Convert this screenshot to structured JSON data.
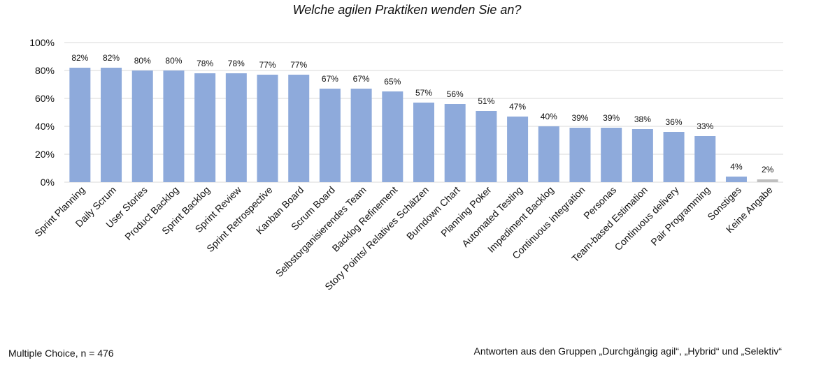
{
  "chart_data": {
    "type": "bar",
    "title": "Welche agilen Praktiken wenden Sie an?",
    "categories": [
      "Sprint Planning",
      "Daily Scrum",
      "User Stories",
      "Product Backlog",
      "Sprint Backlog",
      "Sprint Review",
      "Sprint Retrospective",
      "Kanban Board",
      "Scrum Board",
      "Selbstorganisierendes Team",
      "Backlog Refinement",
      "Story Points/ Relatives Schätzen",
      "Burndown Chart",
      "Planning Poker",
      "Automated Testing",
      "Impediment Backlog",
      "Continuous integration",
      "Personas",
      "Team-based Estimation",
      "Continuous delivery",
      "Pair Programming",
      "Sonstiges",
      "Keine Angabe"
    ],
    "values": [
      82,
      82,
      80,
      80,
      78,
      78,
      77,
      77,
      67,
      67,
      65,
      57,
      56,
      51,
      47,
      40,
      39,
      39,
      38,
      36,
      33,
      4,
      2
    ],
    "data_labels": [
      "82%",
      "82%",
      "80%",
      "80%",
      "78%",
      "78%",
      "77%",
      "77%",
      "67%",
      "67%",
      "65%",
      "57%",
      "56%",
      "51%",
      "47%",
      "40%",
      "39%",
      "39%",
      "38%",
      "36%",
      "33%",
      "4%",
      "2%"
    ],
    "bar_colors": [
      "#8eaadb",
      "#8eaadb",
      "#8eaadb",
      "#8eaadb",
      "#8eaadb",
      "#8eaadb",
      "#8eaadb",
      "#8eaadb",
      "#8eaadb",
      "#8eaadb",
      "#8eaadb",
      "#8eaadb",
      "#8eaadb",
      "#8eaadb",
      "#8eaadb",
      "#8eaadb",
      "#8eaadb",
      "#8eaadb",
      "#8eaadb",
      "#8eaadb",
      "#8eaadb",
      "#8eaadb",
      "#bfbfbf"
    ],
    "yticks": [
      "0%",
      "20%",
      "40%",
      "60%",
      "80%",
      "100%"
    ],
    "ylim": [
      0,
      100
    ],
    "grid": true,
    "xlabel": "",
    "ylabel": ""
  },
  "footer": {
    "left_note": "Multiple Choice, n = 476",
    "right_note": "Antworten aus den Gruppen „Durchgängig agil“, „Hybrid“ und „Selektiv“"
  }
}
